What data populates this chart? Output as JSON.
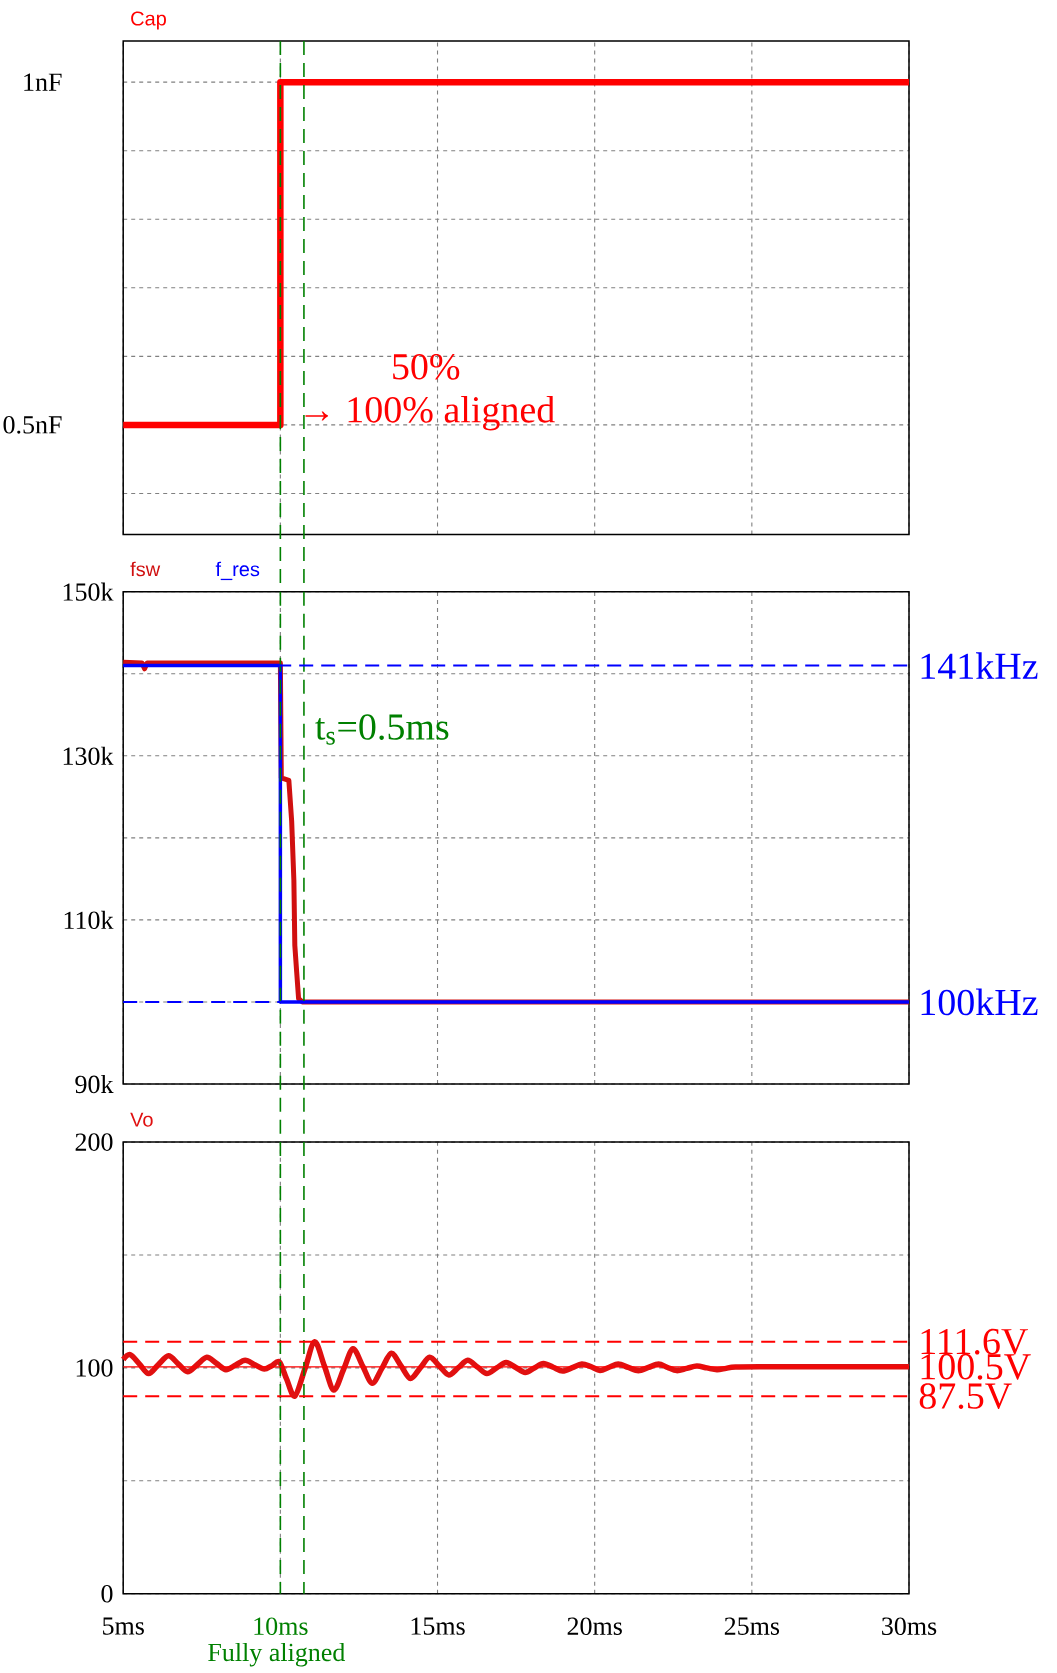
{
  "chart_data": [
    {
      "type": "step",
      "series": [
        {
          "name": "Cap",
          "color": "#ff0000",
          "x": [
            5,
            10,
            30
          ],
          "values": [
            0.5,
            1,
            1
          ]
        }
      ],
      "xlim": [
        5,
        30
      ],
      "xticks": [
        {
          "value": 5,
          "label": null
        },
        {
          "value": 10,
          "label": null
        },
        {
          "value": 15,
          "label": null
        },
        {
          "value": 20,
          "label": null
        },
        {
          "value": 25,
          "label": null
        },
        {
          "value": 30,
          "label": null
        }
      ],
      "ylim": [
        0.34,
        1.06
      ],
      "yticks": [
        {
          "value": 0.4,
          "label": null
        },
        {
          "value": 0.5,
          "label": "0.5nF"
        },
        {
          "value": 0.6,
          "label": null
        },
        {
          "value": 0.7,
          "label": null
        },
        {
          "value": 0.8,
          "label": null
        },
        {
          "value": 0.9,
          "label": null
        },
        {
          "value": 1,
          "label": "1nF"
        }
      ],
      "grid": true,
      "legend": "top left",
      "tick_labels": "y",
      "ref_lines": [
        {
          "axis": "x",
          "value": 10,
          "color": "#008000",
          "line_style": "dashed"
        },
        {
          "axis": "x",
          "value": 10.75,
          "color": "#008000",
          "line_style": "dashed"
        }
      ],
      "annotations": [
        "50%",
        "→ 100% aligned"
      ]
    },
    {
      "type": "line",
      "series": [
        {
          "name": "fsw",
          "color": "#d01010",
          "x": [
            5,
            5.6,
            5.68,
            5.76,
            10,
            10.03,
            10.27,
            10.36,
            10.43,
            10.46,
            10.52,
            10.58,
            10.7,
            30
          ],
          "values": [
            141400,
            141300,
            140600,
            141300,
            141300,
            127300,
            127000,
            122000,
            114800,
            106900,
            103600,
            100400,
            100000,
            100000
          ]
        },
        {
          "name": "f_res",
          "type": "step",
          "color": "#0000ff",
          "x": [
            5,
            10,
            30
          ],
          "values": [
            141000,
            100000,
            100000
          ]
        }
      ],
      "xlim": [
        5,
        30
      ],
      "xticks": [
        {
          "value": 5,
          "label": null
        },
        {
          "value": 10,
          "label": null
        },
        {
          "value": 15,
          "label": null
        },
        {
          "value": 20,
          "label": null
        },
        {
          "value": 25,
          "label": null
        },
        {
          "value": 30,
          "label": null
        }
      ],
      "ylim": [
        90000,
        150000
      ],
      "yticks": [
        {
          "value": 90000,
          "label": "90k"
        },
        {
          "value": 100000,
          "label": null
        },
        {
          "value": 110000,
          "label": "110k"
        },
        {
          "value": 120000,
          "label": null
        },
        {
          "value": 130000,
          "label": "130k"
        },
        {
          "value": 140000,
          "label": null
        },
        {
          "value": 150000,
          "label": "150k"
        }
      ],
      "grid": true,
      "legend": "top left",
      "tick_labels": "y",
      "ref_lines": [
        {
          "axis": "x",
          "value": 10,
          "color": "#008000",
          "line_style": "dashed"
        },
        {
          "axis": "x",
          "value": 10.75,
          "color": "#008000",
          "line_style": "dashed"
        },
        {
          "axis": "y",
          "value": 141000,
          "color": "#0000ff",
          "line_style": "dashed"
        },
        {
          "axis": "y",
          "value": 100000,
          "color": "#0000ff",
          "line_style": "dashed"
        }
      ],
      "annotations": [
        "t$_{s}$=0.5ms",
        "141kHz",
        "100kHz"
      ]
    },
    {
      "type": "line",
      "series": [
        {
          "name": "Vo",
          "color": "#e01010",
          "x": [
            5,
            5.22,
            5.52,
            5.81,
            6.12,
            6.44,
            6.75,
            7.05,
            7.36,
            7.66,
            7.97,
            8.27,
            8.58,
            8.88,
            9.19,
            9.49,
            9.73,
            9.97,
            10.2,
            10.46,
            10.78,
            11.09,
            11.4,
            11.7,
            12.01,
            12.31,
            12.62,
            12.92,
            13.23,
            13.53,
            13.84,
            14.14,
            14.45,
            14.75,
            15.06,
            15.36,
            15.66,
            15.96,
            16.27,
            16.57,
            16.88,
            17.18,
            17.49,
            17.79,
            18.08,
            18.37,
            18.68,
            18.98,
            19.29,
            19.59,
            19.88,
            20.17,
            20.46,
            20.75,
            21.07,
            21.39,
            21.71,
            22.03,
            22.32,
            22.61,
            22.93,
            23.25,
            23.57,
            23.89,
            24.18,
            24.48,
            25.5,
            27,
            30
          ],
          "values": [
            103.7,
            105.9,
            101.7,
            97.5,
            101.5,
            105.4,
            101.8,
            98.3,
            101.5,
            104.7,
            102,
            99.2,
            101.3,
            103.4,
            101.4,
            99.5,
            101,
            102.6,
            95,
            87.5,
            99.5,
            111.6,
            100.9,
            90.2,
            99.3,
            108.5,
            100.8,
            93.2,
            99.8,
            106.5,
            100.9,
            95.3,
            100,
            104.7,
            100.8,
            96.9,
            100.1,
            103.4,
            100.4,
            97.5,
            100,
            102.4,
            100.2,
            98,
            100,
            102,
            100.3,
            98.6,
            100.1,
            101.7,
            100.6,
            98.9,
            100.3,
            101.7,
            100.2,
            98.8,
            100.2,
            101.7,
            100.2,
            98.8,
            99.8,
            100.8,
            100,
            99.2,
            99.8,
            100.4,
            100.5,
            100.5,
            100.5
          ]
        }
      ],
      "xlim": [
        5,
        30
      ],
      "xticks": [
        {
          "value": 5,
          "label": "5ms"
        },
        {
          "value": 10,
          "label": "10ms"
        },
        {
          "value": 15,
          "label": "15ms"
        },
        {
          "value": 20,
          "label": "20ms"
        },
        {
          "value": 25,
          "label": "25ms"
        },
        {
          "value": 30,
          "label": "30ms"
        }
      ],
      "ylim": [
        0,
        200
      ],
      "yticks": [
        0,
        {
          "value": 50,
          "label": null
        },
        100,
        {
          "value": 150,
          "label": null
        },
        200
      ],
      "grid": true,
      "legend": "top left",
      "ref_lines": [
        {
          "axis": "x",
          "value": 10,
          "color": "#008000",
          "line_style": "dashed"
        },
        {
          "axis": "x",
          "value": 10.75,
          "color": "#008000",
          "line_style": "dashed"
        },
        {
          "axis": "y",
          "value": 111.6,
          "color": "#ff0000",
          "line_style": "dashed"
        },
        {
          "axis": "y",
          "value": 100.5,
          "color": "#ff0000",
          "line_style": "solid"
        },
        {
          "axis": "y",
          "value": 87.5,
          "color": "#ff0000",
          "line_style": "dashed"
        }
      ],
      "annotations": [
        "Fully aligned",
        "111.6V",
        "100.5V",
        "87.5V"
      ]
    }
  ]
}
